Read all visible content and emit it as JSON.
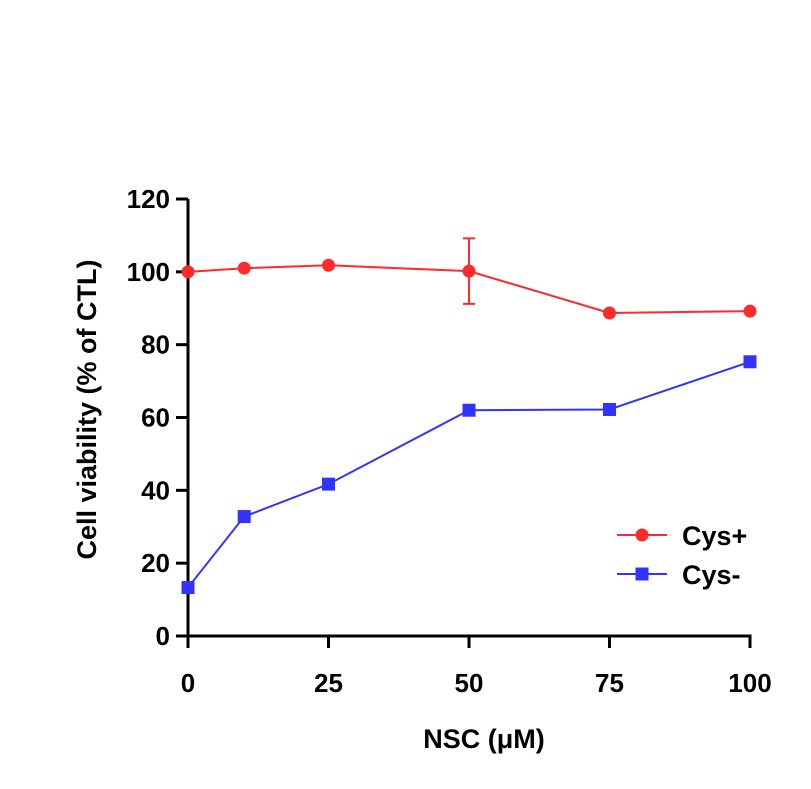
{
  "chart_data": {
    "type": "line",
    "xlabel": "NSC (μM)",
    "ylabel": "Cell viability (% of CTL)",
    "xlim": [
      0,
      100
    ],
    "ylim": [
      0,
      120
    ],
    "xticks": [
      0,
      25,
      50,
      75,
      100
    ],
    "yticks": [
      0,
      20,
      40,
      60,
      80,
      100,
      120
    ],
    "xtick_labels": [
      "0",
      "25",
      "50",
      "75",
      "100"
    ],
    "ytick_labels": [
      "0",
      "20",
      "40",
      "60",
      "80",
      "100",
      "120"
    ],
    "grid": false,
    "legend_position": "bottom-right",
    "series": [
      {
        "name": "Cys+",
        "color": "#ff2a2a",
        "marker": "circle",
        "x": [
          0,
          10,
          25,
          50,
          75,
          100
        ],
        "y": [
          100,
          101,
          101.8,
          100.2,
          88.7,
          89.2
        ],
        "error": [
          0,
          0,
          0,
          9,
          0,
          0
        ]
      },
      {
        "name": "Cys-",
        "color": "#3333ff",
        "marker": "square",
        "x": [
          0,
          10,
          25,
          50,
          75,
          100
        ],
        "y": [
          13.3,
          32.8,
          41.7,
          62,
          62.2,
          75.3
        ],
        "error": [
          0,
          0,
          0,
          0,
          0,
          0
        ]
      }
    ]
  }
}
